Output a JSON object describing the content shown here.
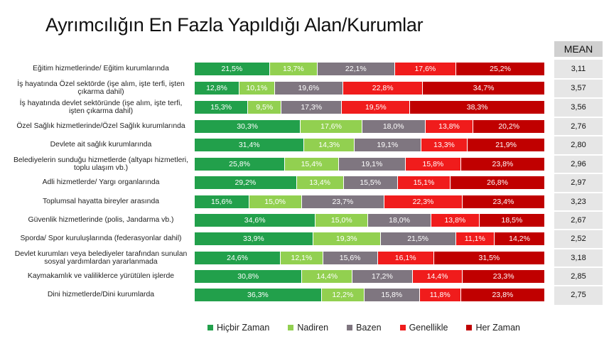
{
  "chart_data": {
    "type": "bar",
    "stacked": true,
    "orientation": "horizontal",
    "title": "Ayrımcılığın En Fazla Yapıldığı Alan/Kurumlar",
    "categories": [
      "Eğitim hizmetlerinde/ Eğitim kurumlarında",
      "İş hayatında Özel sektörde (işe alım, işte terfi, işten çıkarma dahil)",
      "İş hayatında devlet sektöründe (işe alım, işte terfi, işten çıkarma dahil)",
      "Özel Sağlık hizmetlerinde/Özel Sağlık kurumlarında",
      "Devlete ait sağlık kurumlarında",
      "Belediyelerin sunduğu hizmetlerde (altyapı hizmetleri, toplu ulaşım vb.)",
      "Adli hizmetlerde/ Yargı organlarında",
      "Toplumsal hayatta bireyler arasında",
      "Güvenlik hizmetlerinde (polis, Jandarma vb.)",
      "Sporda/ Spor kuruluşlarında (federasyonlar dahil)",
      "Devlet kurumları veya belediyeler tarafından sunulan sosyal yardımlardan yararlanmada",
      "Kaymakamlık ve valiliklerce yürütülen işlerde",
      "Dini hizmetlerde/Dini kurumlarda"
    ],
    "series": [
      {
        "name": "Hiçbir Zaman",
        "color": "#22a04b",
        "values": [
          21.5,
          12.8,
          15.3,
          30.3,
          31.4,
          25.8,
          29.2,
          15.6,
          34.6,
          33.9,
          24.6,
          30.8,
          36.3
        ]
      },
      {
        "name": "Nadiren",
        "color": "#92d050",
        "values": [
          13.7,
          10.1,
          9.5,
          17.6,
          14.3,
          15.4,
          13.4,
          15.0,
          15.0,
          19.3,
          12.1,
          14.4,
          12.2
        ]
      },
      {
        "name": "Bazen",
        "color": "#7f7680",
        "values": [
          22.1,
          19.6,
          17.3,
          18.0,
          19.1,
          19.1,
          15.5,
          23.7,
          18.0,
          21.5,
          15.6,
          17.2,
          15.8
        ]
      },
      {
        "name": "Genellikle",
        "color": "#f01c1c",
        "values": [
          17.6,
          22.8,
          19.5,
          13.8,
          13.3,
          15.8,
          15.1,
          22.3,
          13.8,
          11.1,
          16.1,
          14.4,
          11.8
        ]
      },
      {
        "name": "Her Zaman",
        "color": "#c00000",
        "values": [
          25.2,
          34.7,
          38.3,
          20.2,
          21.9,
          23.8,
          26.8,
          23.4,
          18.5,
          14.2,
          31.5,
          23.3,
          23.8
        ]
      }
    ],
    "mean_header": "MEAN",
    "means": [
      "3,11",
      "3,57",
      "3,56",
      "2,76",
      "2,80",
      "2,96",
      "2,97",
      "3,23",
      "2,67",
      "2,52",
      "3,18",
      "2,85",
      "2,75"
    ],
    "legend_position": "bottom",
    "grid": false
  }
}
